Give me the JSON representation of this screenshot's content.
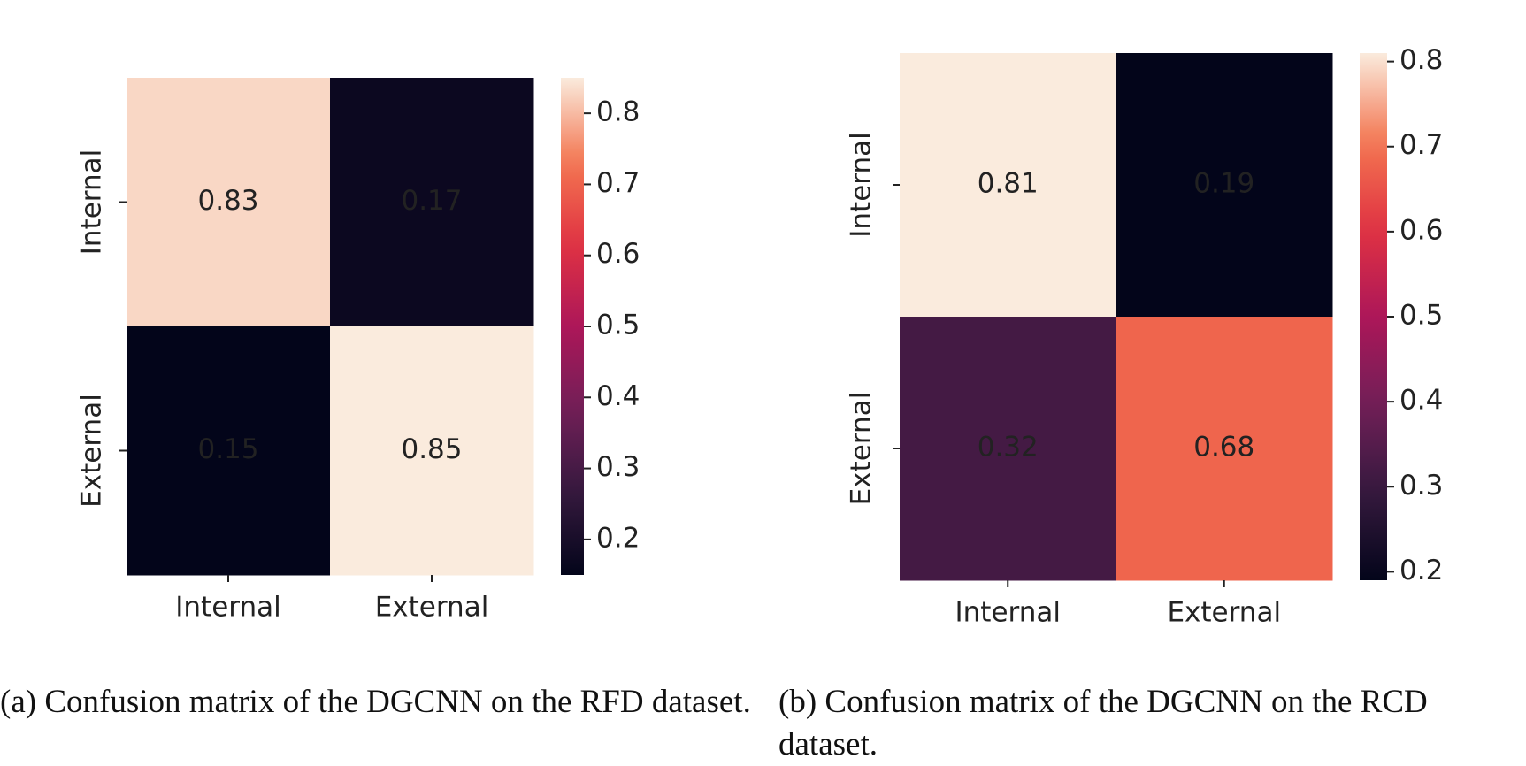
{
  "chart_data": [
    {
      "type": "heatmap",
      "colormap": "rocket",
      "x_categories": [
        "Internal",
        "External"
      ],
      "y_categories": [
        "Internal",
        "External"
      ],
      "values": [
        [
          0.83,
          0.17
        ],
        [
          0.15,
          0.85
        ]
      ],
      "clim": [
        0.15,
        0.85
      ],
      "cticks": [
        0.2,
        0.3,
        0.4,
        0.5,
        0.6,
        0.7,
        0.8
      ],
      "caption": "(a) Confusion matrix of the DGCNN on the RFD dataset."
    },
    {
      "type": "heatmap",
      "colormap": "rocket",
      "x_categories": [
        "Internal",
        "External"
      ],
      "y_categories": [
        "Internal",
        "External"
      ],
      "values": [
        [
          0.81,
          0.19
        ],
        [
          0.32,
          0.68
        ]
      ],
      "clim": [
        0.19,
        0.81
      ],
      "cticks": [
        0.2,
        0.3,
        0.4,
        0.5,
        0.6,
        0.7,
        0.8
      ],
      "caption": "(b) Confusion matrix of the DGCNN on the RCD dataset."
    }
  ]
}
